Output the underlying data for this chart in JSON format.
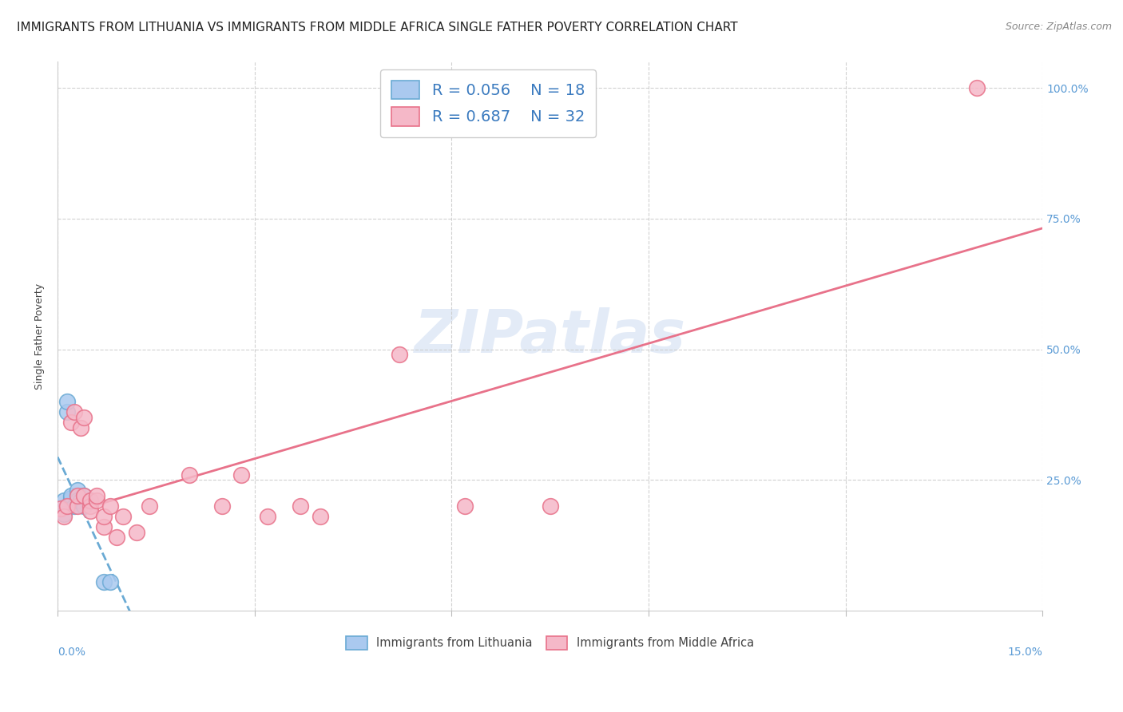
{
  "title": "IMMIGRANTS FROM LITHUANIA VS IMMIGRANTS FROM MIDDLE AFRICA SINGLE FATHER POVERTY CORRELATION CHART",
  "source": "Source: ZipAtlas.com",
  "ylabel": "Single Father Poverty",
  "legend_1_r": "R = 0.056",
  "legend_1_n": "N = 18",
  "legend_2_r": "R = 0.687",
  "legend_2_n": "N = 32",
  "watermark": "ZIPatlas",
  "blue_fill": "#aac9ef",
  "blue_edge": "#6aaad4",
  "pink_fill": "#f5b8c8",
  "pink_edge": "#e8728a",
  "blue_line": "#6aaad4",
  "pink_line": "#e8728a",
  "legend_text_color": "#3a7abf",
  "lithuania_x": [
    0.0005,
    0.001,
    0.001,
    0.0015,
    0.0015,
    0.002,
    0.002,
    0.002,
    0.0025,
    0.003,
    0.003,
    0.003,
    0.0035,
    0.004,
    0.004,
    0.005,
    0.007,
    0.008
  ],
  "lithuania_y": [
    0.195,
    0.21,
    0.185,
    0.38,
    0.4,
    0.21,
    0.215,
    0.22,
    0.2,
    0.22,
    0.23,
    0.21,
    0.21,
    0.2,
    0.22,
    0.21,
    0.055,
    0.055
  ],
  "middle_africa_x": [
    0.0005,
    0.001,
    0.0015,
    0.002,
    0.0025,
    0.003,
    0.003,
    0.0035,
    0.004,
    0.004,
    0.005,
    0.005,
    0.005,
    0.006,
    0.006,
    0.007,
    0.007,
    0.008,
    0.009,
    0.01,
    0.012,
    0.014,
    0.02,
    0.025,
    0.028,
    0.032,
    0.037,
    0.04,
    0.052,
    0.062,
    0.075,
    0.14
  ],
  "middle_africa_y": [
    0.195,
    0.18,
    0.2,
    0.36,
    0.38,
    0.2,
    0.22,
    0.35,
    0.37,
    0.22,
    0.2,
    0.21,
    0.19,
    0.21,
    0.22,
    0.16,
    0.18,
    0.2,
    0.14,
    0.18,
    0.15,
    0.2,
    0.26,
    0.2,
    0.26,
    0.18,
    0.2,
    0.18,
    0.49,
    0.2,
    0.2,
    1.0
  ],
  "xmin": 0.0,
  "xmax": 0.15,
  "ymin": 0.0,
  "ymax": 1.05,
  "title_fontsize": 11,
  "axis_label_fontsize": 9,
  "tick_fontsize": 10,
  "source_fontsize": 9
}
